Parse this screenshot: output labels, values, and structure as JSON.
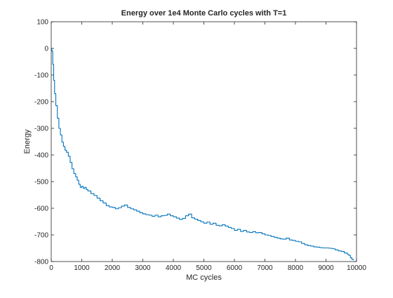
{
  "chart_data": {
    "type": "line",
    "title": "Energy over 1e4 Monte Carlo cycles with T=1",
    "xlabel": "MC cycles",
    "ylabel": "Energy",
    "xlim": [
      0,
      10000
    ],
    "ylim": [
      -800,
      100
    ],
    "xticks": [
      0,
      1000,
      2000,
      3000,
      4000,
      5000,
      6000,
      7000,
      8000,
      9000,
      10000
    ],
    "yticks": [
      100,
      0,
      -100,
      -200,
      -300,
      -400,
      -500,
      -600,
      -700,
      -800
    ],
    "grid": false,
    "legend": "none",
    "series": [
      {
        "color": "#0072BD",
        "x": [
          0,
          20,
          50,
          80,
          110,
          150,
          200,
          250,
          300,
          350,
          400,
          450,
          500,
          560,
          620,
          680,
          740,
          800,
          850,
          900,
          950,
          1000,
          1050,
          1100,
          1150,
          1200,
          1300,
          1400,
          1500,
          1600,
          1700,
          1800,
          1900,
          2000,
          2100,
          2200,
          2300,
          2400,
          2500,
          2600,
          2700,
          2800,
          2900,
          3000,
          3100,
          3200,
          3300,
          3400,
          3500,
          3600,
          3700,
          3800,
          3900,
          4000,
          4100,
          4200,
          4300,
          4400,
          4500,
          4600,
          4700,
          4800,
          4900,
          5000,
          5100,
          5200,
          5300,
          5400,
          5500,
          5600,
          5700,
          5800,
          5900,
          6000,
          6100,
          6200,
          6300,
          6400,
          6500,
          6600,
          6700,
          6800,
          6900,
          7000,
          7100,
          7200,
          7300,
          7400,
          7500,
          7600,
          7700,
          7800,
          7900,
          8000,
          8100,
          8200,
          8300,
          8400,
          8500,
          8600,
          8700,
          8800,
          8900,
          9000,
          9100,
          9200,
          9300,
          9400,
          9500,
          9600,
          9700,
          9750,
          9800,
          9850,
          9900
        ],
        "values": [
          0,
          -10,
          -60,
          -120,
          -170,
          -215,
          -262,
          -300,
          -325,
          -352,
          -368,
          -382,
          -390,
          -405,
          -428,
          -452,
          -470,
          -482,
          -495,
          -510,
          -522,
          -518,
          -526,
          -522,
          -530,
          -535,
          -545,
          -552,
          -562,
          -572,
          -580,
          -590,
          -595,
          -597,
          -602,
          -598,
          -592,
          -588,
          -597,
          -602,
          -606,
          -611,
          -617,
          -621,
          -624,
          -626,
          -630,
          -626,
          -632,
          -628,
          -627,
          -622,
          -628,
          -632,
          -637,
          -642,
          -638,
          -628,
          -622,
          -636,
          -641,
          -646,
          -651,
          -656,
          -652,
          -660,
          -656,
          -664,
          -666,
          -662,
          -667,
          -672,
          -676,
          -683,
          -679,
          -687,
          -683,
          -689,
          -691,
          -688,
          -692,
          -691,
          -696,
          -700,
          -702,
          -706,
          -709,
          -712,
          -715,
          -716,
          -712,
          -719,
          -721,
          -724,
          -726,
          -732,
          -737,
          -740,
          -742,
          -745,
          -746,
          -748,
          -749,
          -749,
          -750,
          -752,
          -756,
          -760,
          -762,
          -768,
          -773,
          -777,
          -786,
          -792,
          -795
        ]
      }
    ]
  }
}
